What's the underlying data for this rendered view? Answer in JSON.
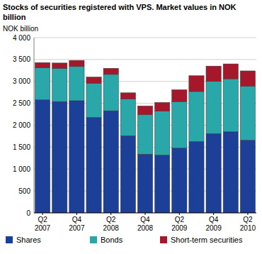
{
  "chart_data": {
    "type": "bar",
    "stacked": true,
    "title": "Stocks of securities registered with VPS. Market values in NOK billion",
    "y_label": "NOK billion",
    "categories": [
      "Q2 2007",
      null,
      "Q4 2007",
      null,
      "Q2 2008",
      null,
      "Q4 2008",
      null,
      "Q2 2009",
      null,
      "Q4 2009",
      null,
      "Q2 2010"
    ],
    "series": [
      {
        "name": "Shares",
        "color": "#1c3f98",
        "values": [
          2580,
          2540,
          2560,
          2180,
          2330,
          1760,
          1340,
          1320,
          1480,
          1630,
          1810,
          1850,
          1660
        ]
      },
      {
        "name": "Bonds",
        "color": "#2aa7a9",
        "values": [
          730,
          760,
          780,
          780,
          830,
          840,
          900,
          1000,
          1060,
          1140,
          1190,
          1210,
          1230
        ]
      },
      {
        "name": "Short-term securities",
        "color": "#a5182b",
        "values": [
          120,
          120,
          140,
          140,
          140,
          140,
          200,
          200,
          270,
          360,
          350,
          340,
          350
        ]
      }
    ],
    "ylim": [
      0,
      4000
    ],
    "yticks": [
      0,
      500,
      {
        "value": 1000,
        "label": "1 000"
      },
      {
        "value": 1500,
        "label": "1 500"
      },
      {
        "value": 2000,
        "label": "2 000"
      },
      {
        "value": 2500,
        "label": "2 500"
      },
      {
        "value": 3000,
        "label": "3 000"
      },
      {
        "value": 3500,
        "label": "3 500"
      },
      {
        "value": 4000,
        "label": "4 000"
      }
    ],
    "grid": true,
    "legend": "bottom"
  }
}
